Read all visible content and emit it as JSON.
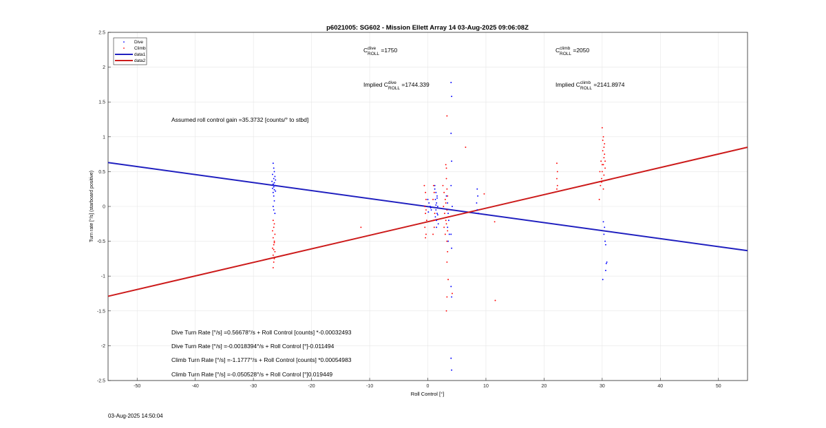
{
  "chart_data": {
    "type": "scatter",
    "title": "p6021005: SG602 - Mission Ellett Array 14 03-Aug-2025 09:06:08Z",
    "xlabel": "Roll Control [°]",
    "ylabel": "Turn rate [°/s] (starboard positive)",
    "xlim": [
      -55,
      55
    ],
    "ylim": [
      -2.5,
      2.5
    ],
    "xticks": [
      -50,
      -40,
      -30,
      -20,
      -10,
      0,
      10,
      20,
      30,
      40,
      50
    ],
    "yticks": [
      -2.5,
      -2,
      -1.5,
      -1,
      -0.5,
      0,
      0.5,
      1,
      1.5,
      2,
      2.5
    ],
    "grid": true,
    "legend_position": "top-left",
    "legend": [
      "Dive",
      "Climb",
      "data1",
      "data2"
    ],
    "colors": {
      "dive": "#0000ff",
      "climb": "#ff0000",
      "data1": "#1f1fbf",
      "data2": "#cc1a1a"
    },
    "series": [
      {
        "name": "Dive",
        "kind": "points",
        "points": [
          [
            -26.6,
            0.62
          ],
          [
            -26.5,
            0.55
          ],
          [
            -26.4,
            0.5
          ],
          [
            -26.7,
            0.46
          ],
          [
            -26.3,
            0.43
          ],
          [
            -26.5,
            0.4
          ],
          [
            -26.2,
            0.38
          ],
          [
            -26.8,
            0.36
          ],
          [
            -26.4,
            0.34
          ],
          [
            -26.6,
            0.32
          ],
          [
            -26.3,
            0.3
          ],
          [
            -26.5,
            0.28
          ],
          [
            -26.7,
            0.26
          ],
          [
            -26.4,
            0.24
          ],
          [
            -26.2,
            0.22
          ],
          [
            -26.6,
            0.2
          ],
          [
            -26.5,
            0.15
          ],
          [
            -26.4,
            0.08
          ],
          [
            -26.6,
            0.0
          ],
          [
            -26.5,
            -0.05
          ],
          [
            -26.3,
            -0.1
          ],
          [
            0.0,
            0.1
          ],
          [
            0.2,
            0.05
          ],
          [
            0.4,
            0.0
          ],
          [
            0.6,
            -0.05
          ],
          [
            0.1,
            -0.08
          ],
          [
            0.5,
            -0.02
          ],
          [
            1.2,
            0.25
          ],
          [
            1.4,
            0.2
          ],
          [
            1.6,
            0.15
          ],
          [
            1.3,
            0.1
          ],
          [
            1.5,
            0.05
          ],
          [
            1.7,
            0.0
          ],
          [
            1.4,
            -0.05
          ],
          [
            1.6,
            -0.1
          ],
          [
            1.3,
            -0.15
          ],
          [
            1.5,
            -0.2
          ],
          [
            1.8,
            -0.25
          ],
          [
            1.2,
            0.3
          ],
          [
            1.6,
            0.12
          ],
          [
            1.4,
            0.02
          ],
          [
            1.7,
            -0.12
          ],
          [
            1.5,
            -0.3
          ],
          [
            3.2,
            0.15
          ],
          [
            3.4,
            0.05
          ],
          [
            3.3,
            -0.05
          ],
          [
            3.5,
            -0.1
          ],
          [
            3.6,
            -0.2
          ],
          [
            3.4,
            -0.3
          ],
          [
            3.7,
            -0.4
          ],
          [
            3.5,
            -0.5
          ],
          [
            4.0,
            1.78
          ],
          [
            4.1,
            1.58
          ],
          [
            4.0,
            1.05
          ],
          [
            4.1,
            0.65
          ],
          [
            4.0,
            0.3
          ],
          [
            4.2,
            0.0
          ],
          [
            4.0,
            -0.4
          ],
          [
            4.1,
            -0.6
          ],
          [
            4.0,
            -1.15
          ],
          [
            4.1,
            -1.3
          ],
          [
            4.0,
            -2.18
          ],
          [
            4.1,
            -2.35
          ],
          [
            8.5,
            0.25
          ],
          [
            8.6,
            0.15
          ],
          [
            8.4,
            0.05
          ],
          [
            8.5,
            -0.05
          ],
          [
            8.7,
            -0.1
          ],
          [
            30.2,
            -0.22
          ],
          [
            30.4,
            -0.3
          ],
          [
            30.3,
            -0.4
          ],
          [
            30.5,
            -0.5
          ],
          [
            30.6,
            -0.55
          ],
          [
            30.8,
            -0.8
          ],
          [
            30.7,
            -0.82
          ],
          [
            30.6,
            -0.92
          ],
          [
            30.1,
            -1.05
          ]
        ]
      },
      {
        "name": "Climb",
        "kind": "points",
        "points": [
          [
            -26.6,
            -0.2
          ],
          [
            -26.4,
            -0.25
          ],
          [
            -26.5,
            -0.3
          ],
          [
            -26.7,
            -0.35
          ],
          [
            -26.3,
            -0.4
          ],
          [
            -26.6,
            -0.45
          ],
          [
            -26.4,
            -0.5
          ],
          [
            -26.5,
            -0.55
          ],
          [
            -26.7,
            -0.6
          ],
          [
            -26.3,
            -0.65
          ],
          [
            -26.6,
            -0.7
          ],
          [
            -26.4,
            -0.75
          ],
          [
            -26.5,
            -0.8
          ],
          [
            -26.6,
            -0.88
          ],
          [
            -26.4,
            -0.52
          ],
          [
            -26.5,
            -0.62
          ],
          [
            -11.5,
            -0.3
          ],
          [
            -0.6,
            0.3
          ],
          [
            -0.4,
            0.2
          ],
          [
            -0.3,
            0.1
          ],
          [
            -0.5,
            0.0
          ],
          [
            -0.4,
            -0.1
          ],
          [
            -0.2,
            -0.2
          ],
          [
            -0.5,
            -0.3
          ],
          [
            -0.3,
            -0.4
          ],
          [
            -0.4,
            -0.45
          ],
          [
            -0.3,
            -0.05
          ],
          [
            1.0,
            0.3
          ],
          [
            1.1,
            0.2
          ],
          [
            0.9,
            0.1
          ],
          [
            1.2,
            -0.1
          ],
          [
            1.0,
            -0.2
          ],
          [
            1.1,
            -0.3
          ],
          [
            0.9,
            -0.4
          ],
          [
            2.6,
            0.3
          ],
          [
            2.8,
            0.2
          ],
          [
            3.0,
            0.1
          ],
          [
            2.7,
            0.0
          ],
          [
            2.9,
            -0.1
          ],
          [
            3.1,
            -0.2
          ],
          [
            2.8,
            -0.3
          ],
          [
            3.0,
            -0.4
          ],
          [
            3.2,
            0.4
          ],
          [
            3.3,
            0.25
          ],
          [
            3.4,
            0.15
          ],
          [
            3.1,
            0.05
          ],
          [
            3.3,
            -0.05
          ],
          [
            3.5,
            -0.15
          ],
          [
            3.2,
            -0.25
          ],
          [
            3.4,
            -0.35
          ],
          [
            3.3,
            -0.5
          ],
          [
            3.4,
            -0.65
          ],
          [
            3.3,
            -0.8
          ],
          [
            3.1,
            0.6
          ],
          [
            3.2,
            0.55
          ],
          [
            3.3,
            1.3
          ],
          [
            3.5,
            -1.05
          ],
          [
            3.3,
            -1.3
          ],
          [
            3.2,
            -1.5
          ],
          [
            4.2,
            -1.25
          ],
          [
            6.5,
            0.85
          ],
          [
            9.7,
            0.18
          ],
          [
            11.5,
            -0.22
          ],
          [
            11.6,
            -1.35
          ],
          [
            22.2,
            0.62
          ],
          [
            22.3,
            0.5
          ],
          [
            22.2,
            0.4
          ],
          [
            22.3,
            0.3
          ],
          [
            22.2,
            0.25
          ],
          [
            29.5,
            0.1
          ],
          [
            29.7,
            0.3
          ],
          [
            29.9,
            0.4
          ],
          [
            30.0,
            0.5
          ],
          [
            30.2,
            0.6
          ],
          [
            30.3,
            0.7
          ],
          [
            30.1,
            0.8
          ],
          [
            30.4,
            0.9
          ],
          [
            30.2,
            1.0
          ],
          [
            30.0,
            1.13
          ],
          [
            29.8,
            0.65
          ],
          [
            30.5,
            0.55
          ],
          [
            30.3,
            0.45
          ],
          [
            29.9,
            0.35
          ],
          [
            30.2,
            0.25
          ],
          [
            30.4,
            0.75
          ],
          [
            30.1,
            0.95
          ],
          [
            30.3,
            0.85
          ],
          [
            30.0,
            0.6
          ],
          [
            29.6,
            0.5
          ],
          [
            30.5,
            0.65
          ]
        ]
      },
      {
        "name": "data1",
        "kind": "line",
        "points": [
          [
            -55,
            0.63
          ],
          [
            55,
            -0.635
          ]
        ]
      },
      {
        "name": "data2",
        "kind": "line",
        "points": [
          [
            -55,
            -1.29
          ],
          [
            55,
            0.85
          ]
        ]
      }
    ]
  },
  "annotations": {
    "dive_c_roll": "1750",
    "climb_c_roll": "2050",
    "implied_dive": "1744.339",
    "implied_climb": "2141.8974",
    "c_letter": "C",
    "roll_sub": "ROLL",
    "dive_sup": "dive",
    "climb_sup": "climb",
    "eq_prefix": " =",
    "implied_prefix": "Implied ",
    "gain_text": "Assumed roll control gain =35.3732 [counts/° to stbd]",
    "eq1": "Dive Turn Rate [°/s] =0.56678°/s + Roll Control [counts] *-0.00032493",
    "eq2": "Dive Turn Rate [°/s] =-0.0018394°/s + Roll Control [°]-0.011494",
    "eq3": "Climb Turn Rate [°/s] =-1.1777°/s + Roll Control [counts] *0.00054983",
    "eq4": "Climb Turn Rate [°/s] =-0.050528°/s + Roll Control [°]0.019449"
  },
  "timestamp": "03-Aug-2025 14:50:04"
}
